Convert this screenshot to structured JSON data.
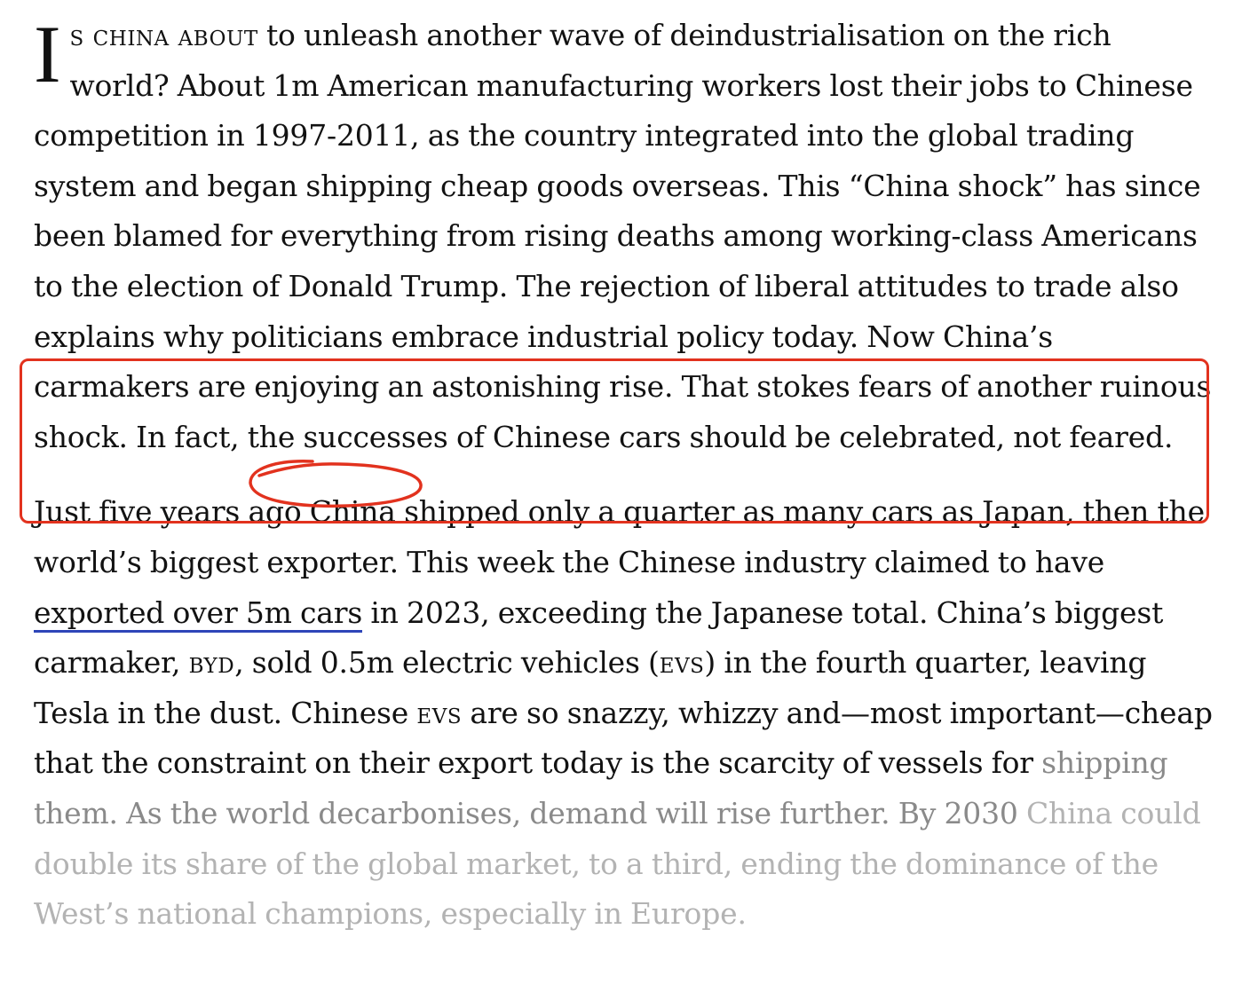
{
  "article": {
    "paragraph1": {
      "dropcap": "I",
      "lead_in": "s china about",
      "text_before_highlight": " to unleash another wave of deindustrialisation on the rich world? About 1m American manufacturing workers lost their jobs to Chinese competition in 1997-2011, as the country integrated into the global trading system and began shipping cheap goods overseas. This “China shock” has since been blamed for everything from rising deaths among working-class Americans to the election of Donald Trump. The rejection of liberal attitudes to trade also explains why politicians embrace industrial policy ",
      "highlighted_text": "today. Now China’s carmakers are enjoying an astonishing rise. That stokes fears of another ruinous shock. In fact, the successes of Chinese cars should be celebrated, ",
      "circled_text": "not feared."
    },
    "paragraph2": {
      "text_1": "Just five years ago China shipped only a quarter as many cars as Japan, then the world’s biggest exporter. This week the Chinese industry claimed to have ",
      "link_text": "exported over 5m cars",
      "text_2": " in 2023, exceeding the Japanese total. China’s biggest carmaker, ",
      "byd": "byd",
      "text_3": ", sold 0.5m electric vehicles (",
      "evs_1": "evs",
      "text_4": ") in the fourth quarter, leaving Tesla in the dust. Chinese ",
      "evs_2": "evs",
      "text_5": " are so snazzy, whizzy and—most important—cheap that the constraint on their export today is the scarcity of vessels for ",
      "faded_1": "shipping them. As the world decarbonises, demand will rise further. By 2030 ",
      "faded_2": "China could double its share of the global market, to a third, ending the dominance of the West’s national champions, especially in Europe."
    }
  },
  "annotation": {
    "color": "#e2321e"
  },
  "link_underline_color": "#2e45b8"
}
